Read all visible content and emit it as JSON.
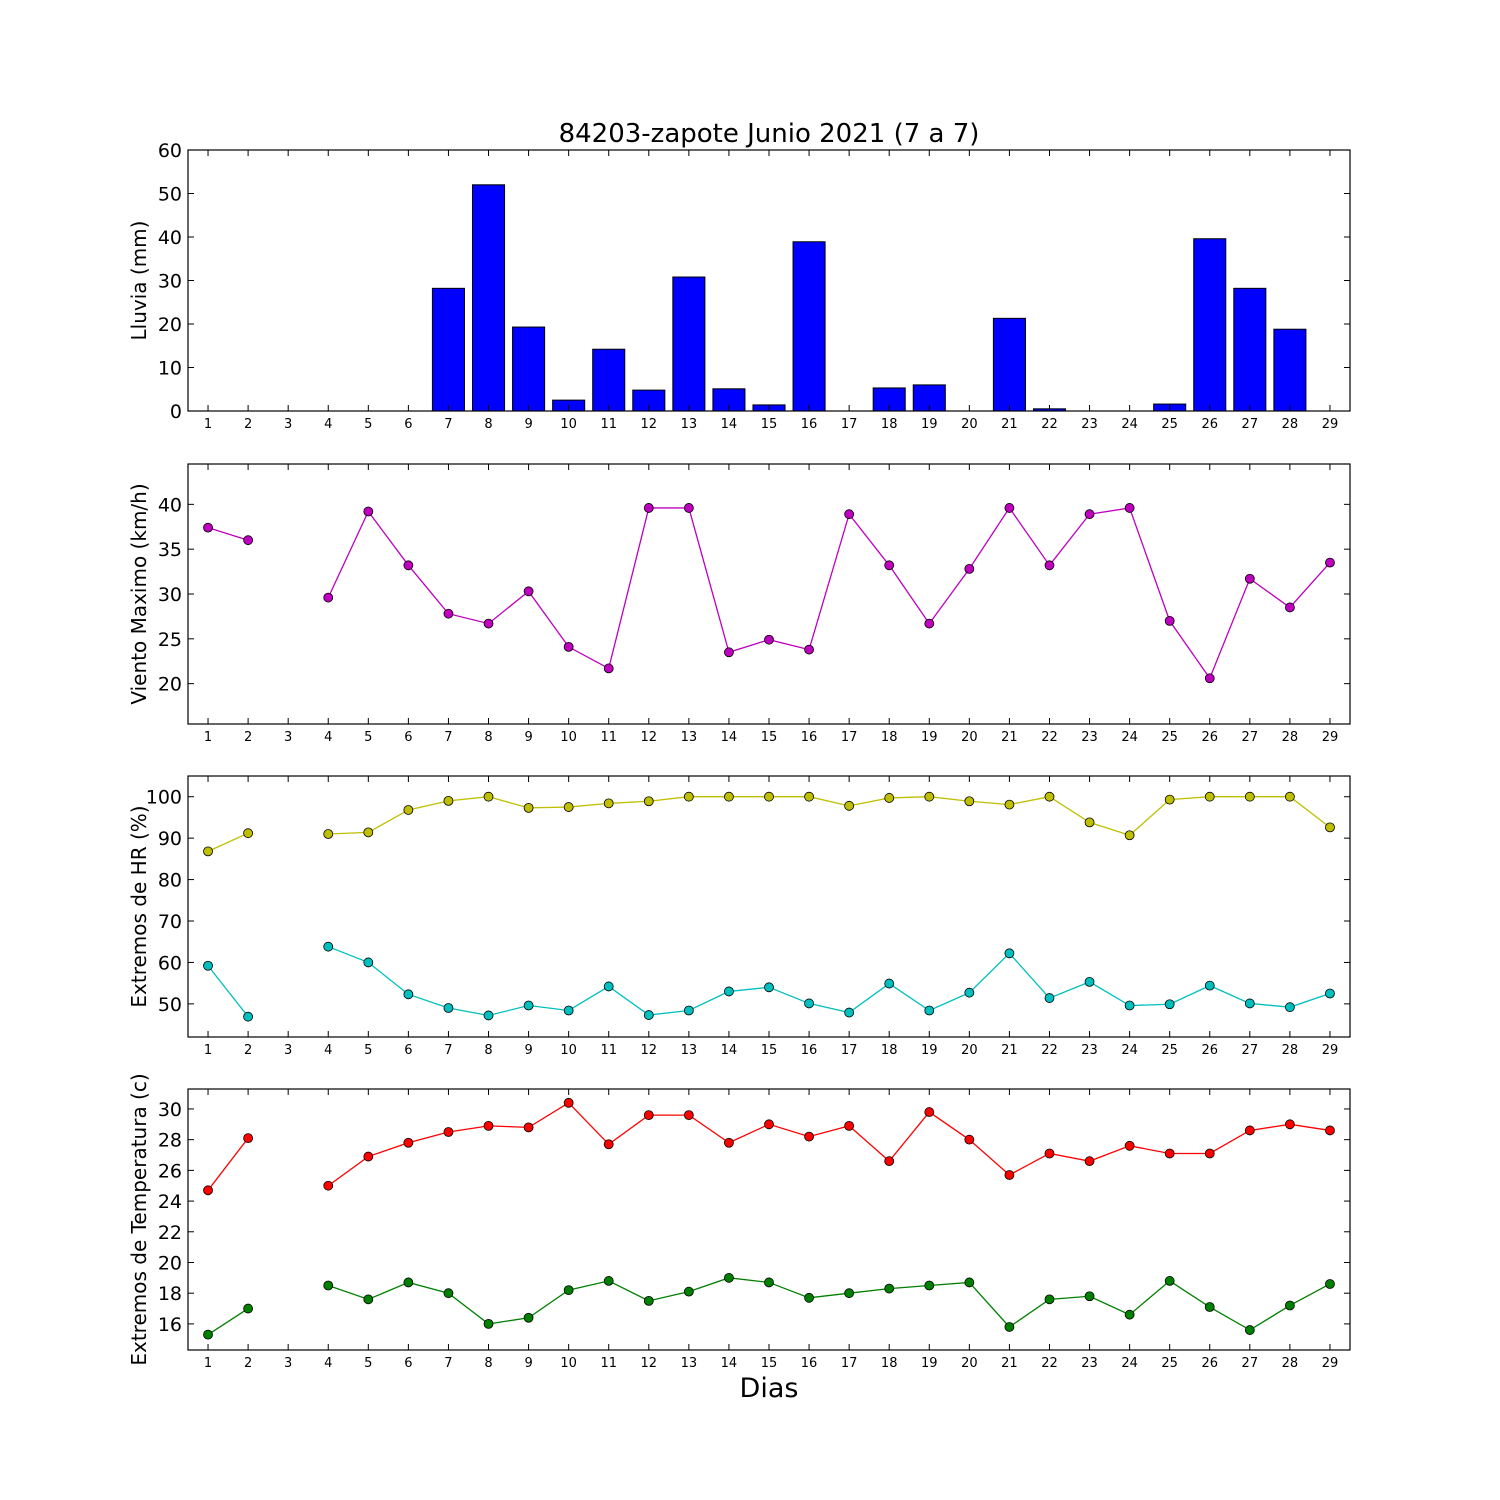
{
  "title": "84203-zapote Junio 2021  (7 a 7)",
  "xlabel": "Dias",
  "chart_data": [
    {
      "type": "bar",
      "ylabel": "Lluvia (mm)",
      "ylim": [
        0,
        60
      ],
      "yticks": [
        0,
        10,
        20,
        30,
        40,
        50,
        60
      ],
      "categories": [
        1,
        2,
        3,
        4,
        5,
        6,
        7,
        8,
        9,
        10,
        11,
        12,
        13,
        14,
        15,
        16,
        17,
        18,
        19,
        20,
        21,
        22,
        23,
        24,
        25,
        26,
        27,
        28,
        29
      ],
      "series": [
        {
          "color": "#0000ff",
          "values": [
            0,
            0,
            0,
            0,
            0,
            0,
            28.2,
            52,
            19.3,
            2.5,
            14.2,
            4.8,
            30.8,
            5.1,
            1.4,
            38.9,
            0,
            5.3,
            6,
            0,
            21.3,
            0.5,
            0,
            0,
            1.6,
            39.6,
            28.2,
            18.8,
            0
          ]
        }
      ],
      "grid": false
    },
    {
      "type": "line",
      "ylabel": "Viento Maximo (km/h)",
      "ylim": [
        15.5,
        44.5
      ],
      "yticks": [
        20,
        25,
        30,
        35,
        40
      ],
      "x": [
        1,
        2,
        3,
        4,
        5,
        6,
        7,
        8,
        9,
        10,
        11,
        12,
        13,
        14,
        15,
        16,
        17,
        18,
        19,
        20,
        21,
        22,
        23,
        24,
        25,
        26,
        27,
        28,
        29
      ],
      "series": [
        {
          "color": "#bf00bf",
          "values": [
            37.4,
            36,
            null,
            29.6,
            39.2,
            33.2,
            27.8,
            26.7,
            30.3,
            24.1,
            21.7,
            39.6,
            39.6,
            23.5,
            24.9,
            23.8,
            38.9,
            33.2,
            26.7,
            32.8,
            39.6,
            33.2,
            38.9,
            39.6,
            27,
            20.6,
            31.7,
            28.5,
            33.5
          ]
        }
      ],
      "grid": false
    },
    {
      "type": "line",
      "ylabel": "Extremos de HR (%)",
      "ylim": [
        42,
        105
      ],
      "yticks": [
        50,
        60,
        70,
        80,
        90,
        100
      ],
      "x": [
        1,
        2,
        3,
        4,
        5,
        6,
        7,
        8,
        9,
        10,
        11,
        12,
        13,
        14,
        15,
        16,
        17,
        18,
        19,
        20,
        21,
        22,
        23,
        24,
        25,
        26,
        27,
        28,
        29
      ],
      "series": [
        {
          "color": "#bfbf00",
          "values": [
            86.8,
            91.2,
            null,
            91,
            91.4,
            96.8,
            99,
            100,
            97.3,
            97.5,
            98.4,
            98.9,
            100,
            100,
            100,
            100,
            97.8,
            99.7,
            100,
            98.9,
            98.1,
            100,
            93.8,
            90.7,
            99.3,
            100,
            100,
            100,
            92.6
          ]
        },
        {
          "color": "#00bfbf",
          "values": [
            59.2,
            46.9,
            null,
            63.8,
            60,
            52.3,
            49,
            47.2,
            49.6,
            48.4,
            54.2,
            47.3,
            48.4,
            53,
            54,
            50.1,
            47.9,
            54.9,
            48.4,
            52.7,
            62.2,
            51.4,
            55.3,
            49.6,
            49.9,
            54.4,
            50.1,
            49.2,
            52.5
          ]
        }
      ],
      "grid": false
    },
    {
      "type": "line",
      "ylabel": "Extremos de Temperatura (c)",
      "ylim": [
        14.3,
        31.3
      ],
      "yticks": [
        16,
        18,
        20,
        22,
        24,
        26,
        28,
        30
      ],
      "x": [
        1,
        2,
        3,
        4,
        5,
        6,
        7,
        8,
        9,
        10,
        11,
        12,
        13,
        14,
        15,
        16,
        17,
        18,
        19,
        20,
        21,
        22,
        23,
        24,
        25,
        26,
        27,
        28,
        29
      ],
      "series": [
        {
          "color": "#ff0000",
          "values": [
            24.7,
            28.1,
            null,
            25,
            26.9,
            27.8,
            28.5,
            28.9,
            28.8,
            30.4,
            27.7,
            29.6,
            29.6,
            27.8,
            29,
            28.2,
            28.9,
            26.6,
            29.8,
            28,
            25.7,
            27.1,
            26.6,
            27.6,
            27.1,
            27.1,
            28.6,
            29,
            28.6
          ]
        },
        {
          "color": "#008000",
          "values": [
            15.3,
            17,
            null,
            18.5,
            17.6,
            18.7,
            18,
            16,
            16.4,
            18.2,
            18.8,
            17.5,
            18.1,
            19,
            18.7,
            17.7,
            18,
            18.3,
            18.5,
            18.7,
            15.8,
            17.6,
            17.8,
            16.6,
            18.8,
            17.1,
            15.6,
            17.2,
            18.6
          ]
        }
      ],
      "grid": false
    }
  ]
}
